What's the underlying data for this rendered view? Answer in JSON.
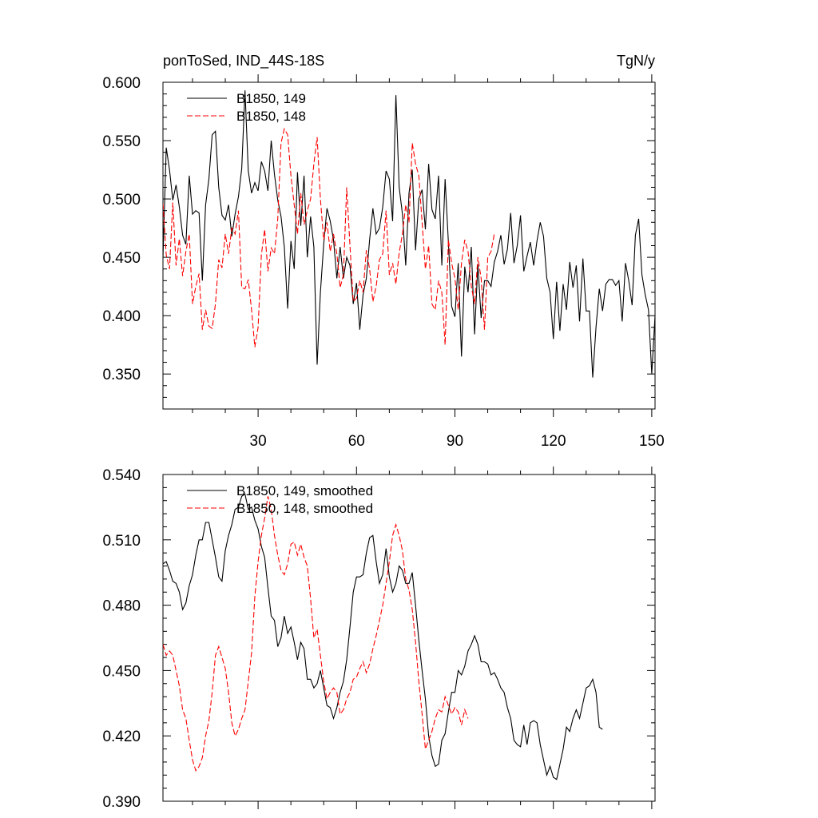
{
  "header": {
    "left": "ponToSed, IND_44S-18S",
    "right": "TgN/y"
  },
  "colors": {
    "series_149": "#000000",
    "series_148": "#ff0000"
  },
  "chart_data": [
    {
      "type": "line",
      "title": "ponToSed, IND_44S-18S",
      "unit": "TgN/y",
      "xlim": [
        1,
        151
      ],
      "ylim": [
        0.32,
        0.6
      ],
      "x_ticks": [
        30,
        60,
        90,
        120,
        150
      ],
      "y_ticks": [
        "0.350",
        "0.400",
        "0.450",
        "0.500",
        "0.550",
        "0.600"
      ],
      "legend_position": "top-left",
      "series": [
        {
          "name": "B1850, 149",
          "color": "#000000",
          "dash": "solid",
          "x_start": 1,
          "values": [
            0.449,
            0.544,
            0.525,
            0.499,
            0.512,
            0.493,
            0.469,
            0.461,
            0.52,
            0.487,
            0.49,
            0.488,
            0.43,
            0.495,
            0.517,
            0.555,
            0.558,
            0.51,
            0.486,
            0.482,
            0.495,
            0.468,
            0.487,
            0.502,
            0.526,
            0.593,
            0.524,
            0.505,
            0.514,
            0.507,
            0.532,
            0.524,
            0.507,
            0.55,
            0.521,
            0.499,
            0.485,
            0.459,
            0.406,
            0.464,
            0.44,
            0.523,
            0.477,
            0.52,
            0.45,
            0.485,
            0.459,
            0.358,
            0.42,
            0.461,
            0.492,
            0.481,
            0.465,
            0.432,
            0.459,
            0.432,
            0.45,
            0.443,
            0.41,
            0.428,
            0.388,
            0.418,
            0.432,
            0.465,
            0.492,
            0.47,
            0.475,
            0.493,
            0.524,
            0.517,
            0.481,
            0.589,
            0.51,
            0.487,
            0.443,
            0.505,
            0.525,
            0.456,
            0.5,
            0.508,
            0.474,
            0.53,
            0.491,
            0.483,
            0.52,
            0.443,
            0.517,
            0.463,
            0.408,
            0.399,
            0.445,
            0.365,
            0.442,
            0.42,
            0.459,
            0.384,
            0.444,
            0.398,
            0.43,
            0.43,
            0.425,
            0.446,
            0.455,
            0.469,
            0.444,
            0.457,
            0.488,
            0.445,
            0.46,
            0.486,
            0.438,
            0.451,
            0.463,
            0.443,
            0.464,
            0.48,
            0.468,
            0.432,
            0.42,
            0.38,
            0.429,
            0.387,
            0.427,
            0.405,
            0.446,
            0.424,
            0.443,
            0.395,
            0.449,
            0.404,
            0.404,
            0.347,
            0.39,
            0.423,
            0.404,
            0.427,
            0.431,
            0.431,
            0.426,
            0.43,
            0.395,
            0.445,
            0.43,
            0.409,
            0.469,
            0.483,
            0.435,
            0.418,
            0.405,
            0.35,
            0.4
          ]
        },
        {
          "name": "B1850, 148",
          "color": "#ff0000",
          "dash": "dashed",
          "x_start": 1,
          "values": [
            0.496,
            0.452,
            0.44,
            0.497,
            0.443,
            0.466,
            0.434,
            0.455,
            0.47,
            0.41,
            0.425,
            0.436,
            0.388,
            0.405,
            0.391,
            0.389,
            0.41,
            0.448,
            0.441,
            0.47,
            0.453,
            0.475,
            0.47,
            0.49,
            0.424,
            0.423,
            0.431,
            0.405,
            0.373,
            0.39,
            0.452,
            0.474,
            0.438,
            0.458,
            0.453,
            0.483,
            0.548,
            0.56,
            0.555,
            0.52,
            0.495,
            0.47,
            0.505,
            0.478,
            0.49,
            0.5,
            0.53,
            0.553,
            0.5,
            0.465,
            0.48,
            0.455,
            0.47,
            0.453,
            0.424,
            0.435,
            0.51,
            0.46,
            0.412,
            0.415,
            0.43,
            0.42,
            0.456,
            0.44,
            0.412,
            0.425,
            0.448,
            0.453,
            0.49,
            0.435,
            0.445,
            0.427,
            0.454,
            0.47,
            0.495,
            0.48,
            0.548,
            0.53,
            0.52,
            0.48,
            0.44,
            0.46,
            0.41,
            0.405,
            0.43,
            0.42,
            0.375,
            0.465,
            0.445,
            0.432,
            0.405,
            0.445,
            0.465,
            0.455,
            0.425,
            0.41,
            0.45,
            0.432,
            0.388,
            0.45,
            0.455,
            0.47
          ]
        }
      ]
    },
    {
      "type": "line",
      "xlim": [
        1,
        151
      ],
      "ylim": [
        0.39,
        0.54
      ],
      "x_ticks": [
        30,
        60,
        90,
        120,
        150
      ],
      "y_ticks": [
        "0.390",
        "0.420",
        "0.450",
        "0.480",
        "0.510",
        "0.540"
      ],
      "legend_position": "top-left",
      "series": [
        {
          "name": "B1850, 149, smoothed",
          "color": "#000000",
          "dash": "solid",
          "x_start": 1,
          "values": [
            0.499,
            0.5,
            0.496,
            0.491,
            0.49,
            0.486,
            0.478,
            0.481,
            0.489,
            0.494,
            0.503,
            0.51,
            0.51,
            0.518,
            0.518,
            0.51,
            0.502,
            0.493,
            0.491,
            0.505,
            0.512,
            0.517,
            0.524,
            0.525,
            0.53,
            0.531,
            0.524,
            0.525,
            0.519,
            0.515,
            0.507,
            0.502,
            0.488,
            0.475,
            0.473,
            0.461,
            0.465,
            0.475,
            0.467,
            0.47,
            0.463,
            0.455,
            0.463,
            0.46,
            0.446,
            0.446,
            0.442,
            0.444,
            0.45,
            0.442,
            0.434,
            0.433,
            0.428,
            0.433,
            0.44,
            0.445,
            0.455,
            0.47,
            0.486,
            0.493,
            0.493,
            0.494,
            0.504,
            0.511,
            0.512,
            0.5,
            0.49,
            0.494,
            0.506,
            0.493,
            0.486,
            0.49,
            0.498,
            0.496,
            0.49,
            0.49,
            0.495,
            0.48,
            0.464,
            0.45,
            0.437,
            0.42,
            0.411,
            0.406,
            0.407,
            0.418,
            0.421,
            0.431,
            0.44,
            0.44,
            0.45,
            0.448,
            0.452,
            0.459,
            0.462,
            0.466,
            0.462,
            0.454,
            0.454,
            0.453,
            0.448,
            0.449,
            0.446,
            0.442,
            0.44,
            0.433,
            0.428,
            0.418,
            0.416,
            0.415,
            0.425,
            0.416,
            0.426,
            0.427,
            0.426,
            0.416,
            0.409,
            0.402,
            0.406,
            0.401,
            0.4,
            0.407,
            0.414,
            0.424,
            0.422,
            0.428,
            0.432,
            0.428,
            0.435,
            0.442,
            0.443,
            0.446,
            0.44,
            0.424,
            0.423
          ]
        },
        {
          "name": "B1850, 148, smoothed",
          "color": "#ff0000",
          "dash": "dashed",
          "x_start": 1,
          "values": [
            0.462,
            0.457,
            0.459,
            0.457,
            0.45,
            0.443,
            0.432,
            0.428,
            0.418,
            0.409,
            0.404,
            0.406,
            0.41,
            0.42,
            0.427,
            0.44,
            0.457,
            0.461,
            0.456,
            0.451,
            0.44,
            0.426,
            0.42,
            0.423,
            0.428,
            0.432,
            0.445,
            0.458,
            0.484,
            0.5,
            0.512,
            0.52,
            0.53,
            0.524,
            0.512,
            0.503,
            0.496,
            0.494,
            0.499,
            0.508,
            0.509,
            0.503,
            0.508,
            0.502,
            0.498,
            0.483,
            0.465,
            0.469,
            0.457,
            0.445,
            0.437,
            0.44,
            0.442,
            0.44,
            0.43,
            0.432,
            0.437,
            0.44,
            0.446,
            0.447,
            0.451,
            0.454,
            0.449,
            0.453,
            0.46,
            0.466,
            0.473,
            0.48,
            0.49,
            0.5,
            0.512,
            0.517,
            0.512,
            0.505,
            0.492,
            0.487,
            0.478,
            0.463,
            0.445,
            0.43,
            0.414,
            0.418,
            0.422,
            0.428,
            0.432,
            0.431,
            0.438,
            0.434,
            0.43,
            0.433,
            0.431,
            0.425,
            0.432,
            0.428
          ]
        }
      ]
    }
  ]
}
